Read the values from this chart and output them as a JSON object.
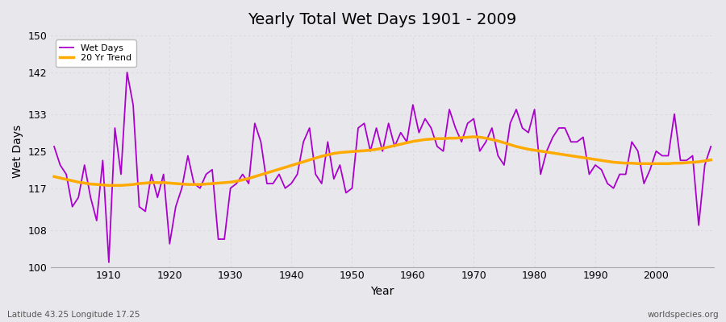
{
  "title": "Yearly Total Wet Days 1901 - 2009",
  "xlabel": "Year",
  "ylabel": "Wet Days",
  "subtitle_left": "Latitude 43.25 Longitude 17.25",
  "subtitle_right": "worldspecies.org",
  "ylim": [
    100,
    150
  ],
  "yticks": [
    100,
    108,
    117,
    125,
    133,
    142,
    150
  ],
  "line_color": "#aa00cc",
  "trend_color": "#ffaa00",
  "bg_color": "#e8e8ec",
  "grid_color": "#d8d8e0",
  "years": [
    1901,
    1902,
    1903,
    1904,
    1905,
    1906,
    1907,
    1908,
    1909,
    1910,
    1911,
    1912,
    1913,
    1914,
    1915,
    1916,
    1917,
    1918,
    1919,
    1920,
    1921,
    1922,
    1923,
    1924,
    1925,
    1926,
    1927,
    1928,
    1929,
    1930,
    1931,
    1932,
    1933,
    1934,
    1935,
    1936,
    1937,
    1938,
    1939,
    1940,
    1941,
    1942,
    1943,
    1944,
    1945,
    1946,
    1947,
    1948,
    1949,
    1950,
    1951,
    1952,
    1953,
    1954,
    1955,
    1956,
    1957,
    1958,
    1959,
    1960,
    1961,
    1962,
    1963,
    1964,
    1965,
    1966,
    1967,
    1968,
    1969,
    1970,
    1971,
    1972,
    1973,
    1974,
    1975,
    1976,
    1977,
    1978,
    1979,
    1980,
    1981,
    1982,
    1983,
    1984,
    1985,
    1986,
    1987,
    1988,
    1989,
    1990,
    1991,
    1992,
    1993,
    1994,
    1995,
    1996,
    1997,
    1998,
    1999,
    2000,
    2001,
    2002,
    2003,
    2004,
    2005,
    2006,
    2007,
    2008,
    2009
  ],
  "wet_days": [
    126,
    122,
    120,
    113,
    115,
    122,
    115,
    110,
    123,
    101,
    130,
    120,
    142,
    135,
    113,
    112,
    120,
    115,
    120,
    105,
    113,
    117,
    124,
    118,
    117,
    120,
    121,
    106,
    106,
    117,
    118,
    120,
    118,
    131,
    127,
    118,
    118,
    120,
    117,
    118,
    120,
    127,
    130,
    120,
    118,
    127,
    119,
    122,
    116,
    117,
    130,
    131,
    125,
    130,
    125,
    131,
    126,
    129,
    127,
    135,
    129,
    132,
    130,
    126,
    125,
    134,
    130,
    127,
    131,
    132,
    125,
    127,
    130,
    124,
    122,
    131,
    134,
    130,
    129,
    134,
    120,
    125,
    128,
    130,
    130,
    127,
    127,
    128,
    120,
    122,
    121,
    118,
    117,
    120,
    120,
    127,
    125,
    118,
    121,
    125,
    124,
    124,
    133,
    123,
    123,
    124,
    109,
    122,
    126
  ],
  "trend_values": [
    119.5,
    119.2,
    118.9,
    118.6,
    118.3,
    118.1,
    117.9,
    117.8,
    117.7,
    117.6,
    117.6,
    117.6,
    117.7,
    117.8,
    118.0,
    118.1,
    118.2,
    118.2,
    118.2,
    118.1,
    118.0,
    117.9,
    117.8,
    117.8,
    117.8,
    117.9,
    118.0,
    118.1,
    118.2,
    118.3,
    118.5,
    118.8,
    119.1,
    119.5,
    119.9,
    120.3,
    120.7,
    121.1,
    121.5,
    121.9,
    122.3,
    122.7,
    123.1,
    123.5,
    123.9,
    124.2,
    124.5,
    124.7,
    124.8,
    124.9,
    125.0,
    125.1,
    125.2,
    125.4,
    125.6,
    125.9,
    126.2,
    126.5,
    126.8,
    127.1,
    127.3,
    127.5,
    127.6,
    127.7,
    127.7,
    127.8,
    127.8,
    127.9,
    128.0,
    128.1,
    128.0,
    127.8,
    127.5,
    127.2,
    126.8,
    126.4,
    126.0,
    125.7,
    125.4,
    125.2,
    125.0,
    124.8,
    124.6,
    124.4,
    124.2,
    124.0,
    123.8,
    123.6,
    123.4,
    123.2,
    123.0,
    122.8,
    122.6,
    122.5,
    122.4,
    122.4,
    122.3,
    122.3,
    122.3,
    122.3,
    122.3,
    122.3,
    122.4,
    122.4,
    122.5,
    122.6,
    122.7,
    122.9,
    123.1
  ]
}
